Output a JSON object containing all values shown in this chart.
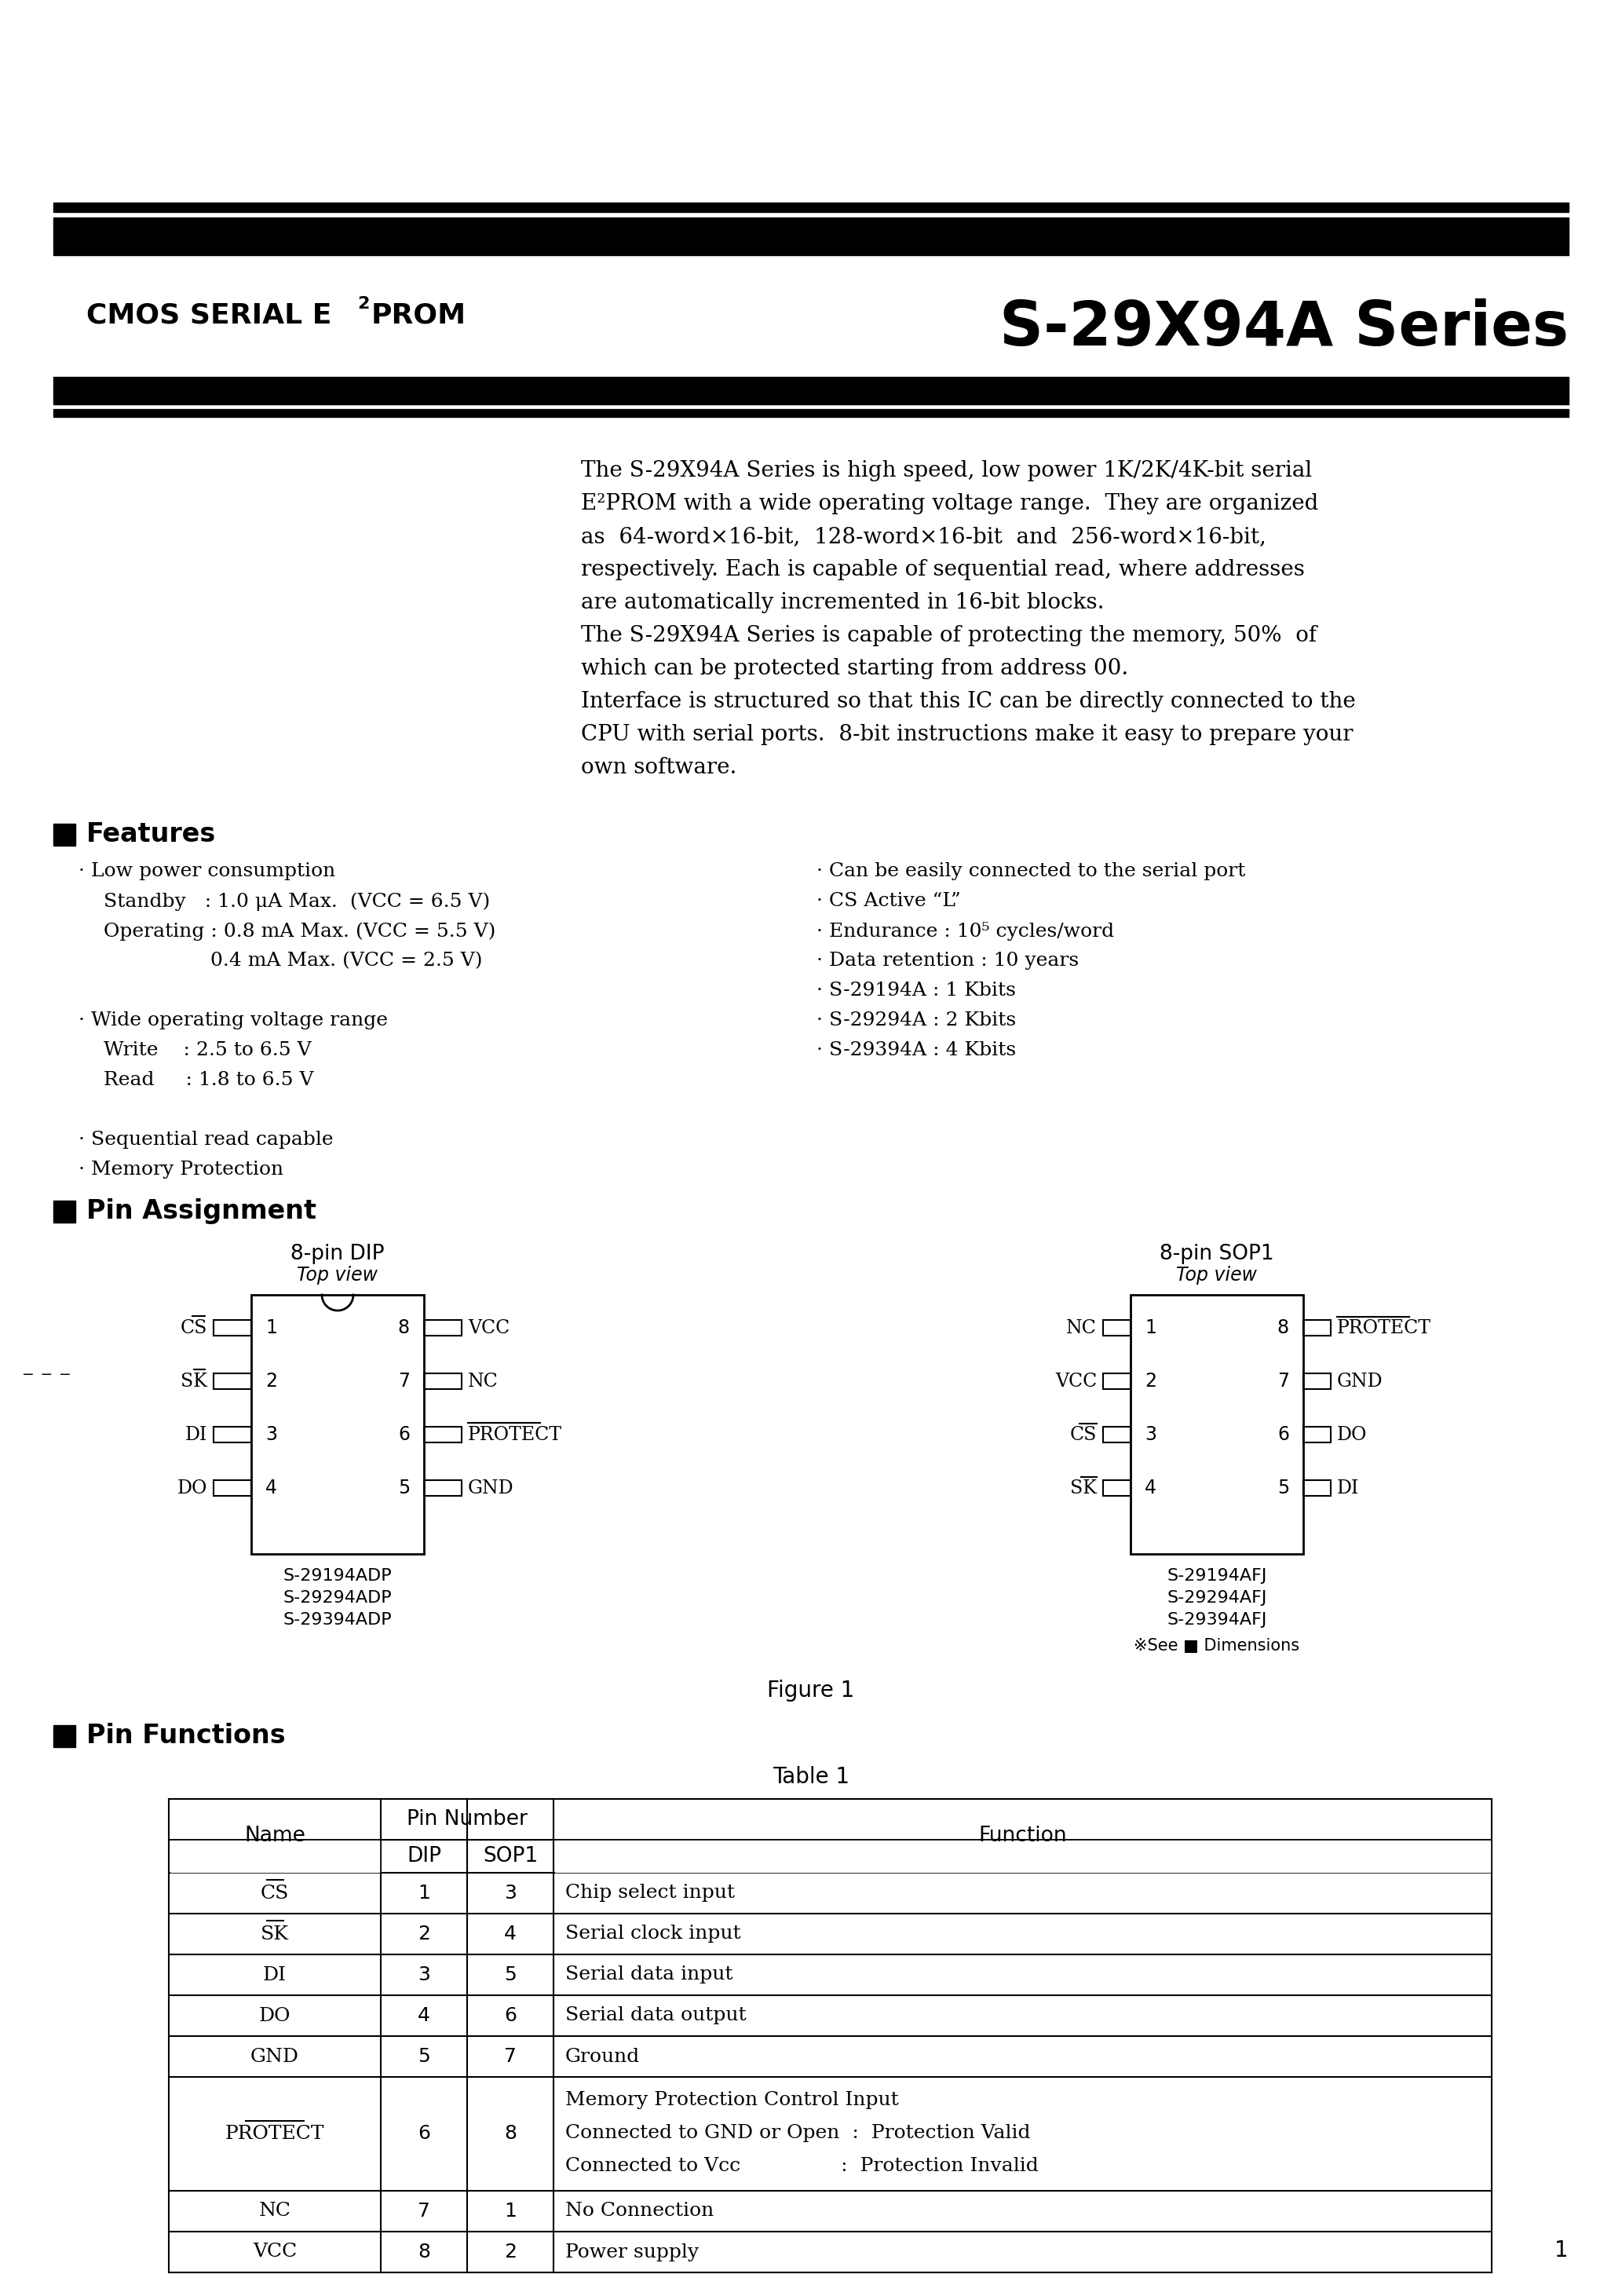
{
  "bg_color": "#ffffff",
  "text_color": "#000000",
  "title_left": "CMOS SERIAL E²PROM",
  "title_right": "S-29X94A Series",
  "intro_text": [
    "The S-29X94A Series is high speed, low power 1K/2K/4K-bit serial",
    "E²PROM with a wide operating voltage range.  They are organized",
    "as  64-word×16-bit,  128-word×16-bit  and  256-word×16-bit,",
    "respectively. Each is capable of sequential read, where addresses",
    "are automatically incremented in 16-bit blocks.",
    "The S-29X94A Series is capable of protecting the memory, 50%  of",
    "which can be protected starting from address 00.",
    "Interface is structured so that this IC can be directly connected to the",
    "CPU with serial ports.  8-bit instructions make it easy to prepare your",
    "own software."
  ],
  "features_left": [
    "· Low power consumption",
    "    Standby   : 1.0 μA Max.  (VCC = 6.5 V)",
    "    Operating : 0.8 mA Max. (VCC = 5.5 V)",
    "                     0.4 mA Max. (VCC = 2.5 V)",
    "",
    "· Wide operating voltage range",
    "    Write    : 2.5 to 6.5 V",
    "    Read     : 1.8 to 6.5 V",
    "",
    "· Sequential read capable",
    "· Memory Protection"
  ],
  "features_right": [
    "· Can be easily connected to the serial port",
    "· CS Active “L”",
    "· Endurance : 10⁵ cycles/word",
    "· Data retention : 10 years",
    "· S-29194A : 1 Kbits",
    "· S-29294A : 2 Kbits",
    "· S-29394A : 4 Kbits"
  ],
  "dip_left_labels": [
    "CS",
    "SK",
    "DI",
    "DO"
  ],
  "dip_left_nums": [
    "1",
    "2",
    "3",
    "4"
  ],
  "dip_right_labels": [
    "VCC",
    "NC",
    "PROTECT",
    "GND"
  ],
  "dip_right_nums": [
    "8",
    "7",
    "6",
    "5"
  ],
  "sop_left_labels": [
    "NC",
    "VCC",
    "CS",
    "SK"
  ],
  "sop_left_nums": [
    "1",
    "2",
    "3",
    "4"
  ],
  "sop_right_labels": [
    "PROTECT",
    "GND",
    "DO",
    "DI"
  ],
  "sop_right_nums": [
    "8",
    "7",
    "6",
    "5"
  ],
  "dip_parts": [
    "S-29194ADP",
    "S-29294ADP",
    "S-29394ADP"
  ],
  "sop_parts": [
    "S-29194AFJ",
    "S-29294AFJ",
    "S-29394AFJ"
  ],
  "table_rows": [
    [
      "CS",
      "1",
      "3",
      "Chip select input"
    ],
    [
      "SK",
      "2",
      "4",
      "Serial clock input"
    ],
    [
      "DI",
      "3",
      "5",
      "Serial data input"
    ],
    [
      "DO",
      "4",
      "6",
      "Serial data output"
    ],
    [
      "GND",
      "5",
      "7",
      "Ground"
    ],
    [
      "PROTECT",
      "6",
      "8",
      "Memory Protection Control Input\nConnected to GND or Open  :  Protection Valid\nConnected to Vcc                :  Protection Invalid"
    ],
    [
      "NC",
      "7",
      "1",
      "No Connection"
    ],
    [
      "VCC",
      "8",
      "2",
      "Power supply"
    ]
  ],
  "overline_names": [
    "CS",
    "SK",
    "PROTECT"
  ],
  "page_number": "1",
  "figure_caption": "Figure 1",
  "table_caption": "Table 1"
}
